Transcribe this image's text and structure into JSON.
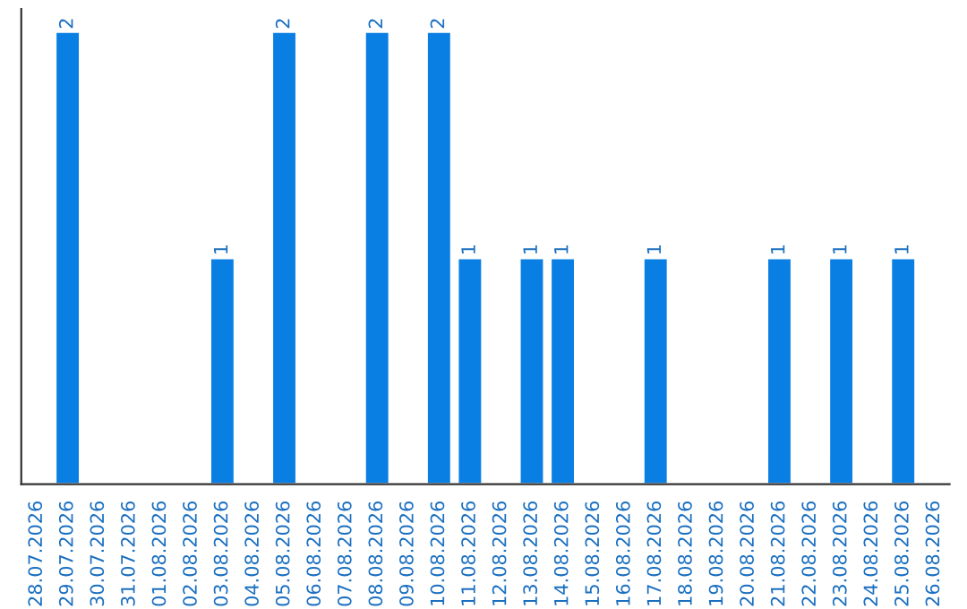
{
  "chart_data": {
    "type": "bar",
    "categories": [
      "28.07.2026",
      "29.07.2026",
      "30.07.2026",
      "31.07.2026",
      "01.08.2026",
      "02.08.2026",
      "03.08.2026",
      "04.08.2026",
      "05.08.2026",
      "06.08.2026",
      "07.08.2026",
      "08.08.2026",
      "09.08.2026",
      "10.08.2026",
      "11.08.2026",
      "12.08.2026",
      "13.08.2026",
      "14.08.2026",
      "15.08.2026",
      "16.08.2026",
      "17.08.2026",
      "18.08.2026",
      "19.08.2026",
      "20.08.2026",
      "21.08.2026",
      "22.08.2026",
      "23.08.2026",
      "24.08.2026",
      "25.08.2026",
      "26.08.2026"
    ],
    "values": [
      null,
      2,
      null,
      null,
      null,
      null,
      1,
      null,
      2,
      null,
      null,
      2,
      null,
      2,
      1,
      null,
      1,
      1,
      null,
      null,
      1,
      null,
      null,
      null,
      1,
      null,
      1,
      null,
      1,
      null
    ],
    "value_labels": [
      null,
      "2",
      null,
      null,
      null,
      null,
      "1",
      null,
      "2",
      null,
      null,
      "2",
      null,
      "2",
      "1",
      null,
      "1",
      "1",
      null,
      null,
      "1",
      null,
      null,
      null,
      "1",
      null,
      "1",
      null,
      "1",
      null
    ],
    "color": "#0a7fe3",
    "ylim": [
      0,
      2.1
    ],
    "tick_labels": "x",
    "grid": false
  }
}
